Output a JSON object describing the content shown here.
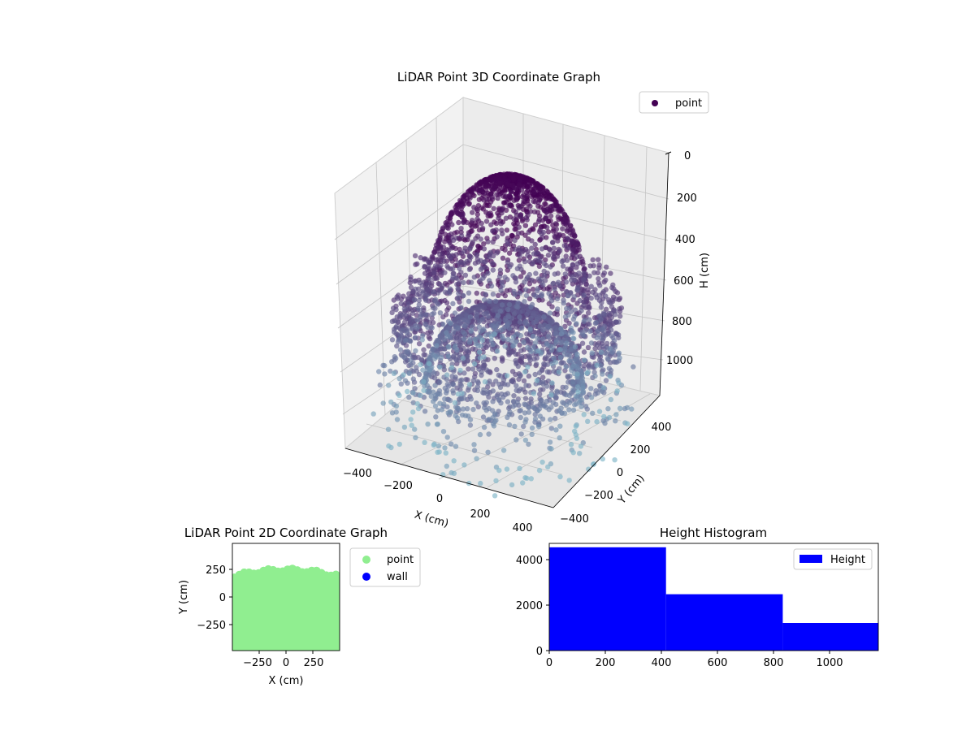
{
  "figure": {
    "background": "#ffffff"
  },
  "chart_data": [
    {
      "id": "lidar-3d",
      "type": "scatter",
      "title": "LiDAR Point 3D Coordinate Graph",
      "xlabel": "X (cm)",
      "ylabel": "Y (cm)",
      "zlabel": "H (cm)",
      "x_ticks": [
        "−400",
        "−200",
        "0",
        "200",
        "400"
      ],
      "y_ticks": [
        "−400",
        "−200",
        "0",
        "200",
        "400"
      ],
      "z_ticks": [
        "0",
        "200",
        "400",
        "600",
        "800",
        "1000"
      ],
      "xlim": [
        -500,
        500
      ],
      "ylim": [
        -500,
        500
      ],
      "zlim": [
        0,
        1100
      ],
      "z_inverted": true,
      "legend": {
        "entries": [
          "point"
        ],
        "placement": "top-right"
      },
      "colormap": "viridis",
      "marker_color_top": "#440154",
      "marker_color_bottom": "#7fb6c8",
      "grid": true,
      "series": [
        {
          "name": "point",
          "structure": {
            "ceiling_dome": {
              "z_range": [
                0,
                700
              ],
              "radius": 350
            },
            "wall_ring": {
              "z_range": [
                500,
                850
              ],
              "radius": 470
            },
            "floor_dome": {
              "z_range": [
                600,
                950
              ],
              "radius": 330
            },
            "scattered_floor": {
              "z_range": [
                850,
                1150
              ]
            }
          }
        }
      ]
    },
    {
      "id": "lidar-2d",
      "type": "scatter",
      "title": "LiDAR Point 2D Coordinate Graph",
      "xlabel": "X (cm)",
      "ylabel": "Y (cm)",
      "x_ticks": [
        "−250",
        "0",
        "250"
      ],
      "y_ticks": [
        "250",
        "0",
        "−250"
      ],
      "xlim": [
        -500,
        500
      ],
      "ylim": [
        -500,
        500
      ],
      "legend": {
        "entries": [
          "point",
          "wall"
        ],
        "placement": "right"
      },
      "series": [
        {
          "name": "point",
          "color": "#90ee90",
          "top_edge_y": 250,
          "bottom_edge_y": -500
        },
        {
          "name": "wall",
          "color": "#0000ff"
        }
      ]
    },
    {
      "id": "height-hist",
      "type": "bar",
      "title": "Height Histogram",
      "x_ticks": [
        "0",
        "200",
        "400",
        "600",
        "800",
        "1000"
      ],
      "y_ticks": [
        "0",
        "2000",
        "4000"
      ],
      "xlim": [
        0,
        1170
      ],
      "ylim": [
        0,
        4700
      ],
      "legend": {
        "entries": [
          "Height"
        ],
        "placement": "top-right"
      },
      "color": "#0000ff",
      "series": [
        {
          "name": "Height",
          "bins": [
            [
              0,
              415
            ],
            [
              415,
              830
            ],
            [
              830,
              1170
            ]
          ],
          "values": [
            4530,
            2470,
            1210
          ]
        }
      ]
    }
  ]
}
